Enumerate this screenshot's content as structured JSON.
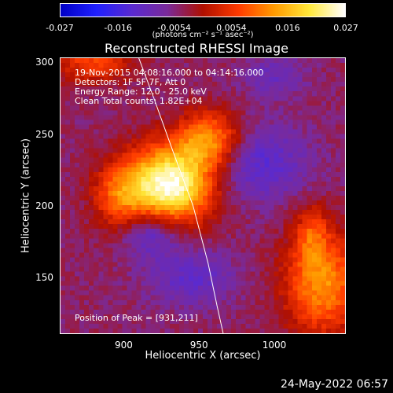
{
  "chart_data": {
    "type": "heatmap",
    "title": "Reconstructed RHESSI Image",
    "xlabel": "Heliocentric X (arcsec)",
    "ylabel": "Heliocentric Y (arcsec)",
    "xlim": [
      858,
      1047
    ],
    "ylim": [
      111,
      303
    ],
    "x_ticks": [
      900,
      950,
      1000
    ],
    "y_ticks": [
      150,
      200,
      250,
      300
    ],
    "colorbar": {
      "min": -0.027,
      "max": 0.027,
      "ticks": [
        "-0.027",
        "-0.016",
        "-0.0054",
        "0.0054",
        "0.016",
        "0.027"
      ],
      "units": "(photons cm⁻² s⁻¹ asec⁻²)",
      "colormap": [
        "#0000c8",
        "#2020ff",
        "#5a2ad0",
        "#7a2a9a",
        "#b01000",
        "#ff3a00",
        "#ff9a00",
        "#ffe83a",
        "#ffffff"
      ]
    },
    "info_lines": [
      "19-Nov-2015 04:08:16.000 to 04:14:16.000",
      "Detectors: 1F 5F 7F, Att 0",
      "Energy Range: 12.0 - 25.0 keV",
      "Clean     Total counts: 1.82E+04"
    ],
    "peak_label": "Position of Peak = [931,211]",
    "peak": {
      "x": 931,
      "y": 211,
      "value": 0.027
    },
    "sources": [
      {
        "x": 930,
        "y": 214,
        "sx": 20,
        "sy": 19,
        "amp": 1.0
      },
      {
        "x": 957,
        "y": 246,
        "sx": 15,
        "sy": 14,
        "amp": 0.55
      },
      {
        "x": 897,
        "y": 206,
        "sx": 12,
        "sy": 17,
        "amp": 0.35
      },
      {
        "x": 1032,
        "y": 145,
        "sx": 18,
        "sy": 24,
        "amp": 0.55
      },
      {
        "x": 1025,
        "y": 180,
        "sx": 8,
        "sy": 14,
        "amp": 0.3
      },
      {
        "x": 880,
        "y": 300,
        "sx": 18,
        "sy": 10,
        "amp": 0.35
      }
    ],
    "limb": [
      [
        910,
        303
      ],
      [
        920,
        275
      ],
      [
        932,
        240
      ],
      [
        946,
        200
      ],
      [
        956,
        160
      ],
      [
        962,
        130
      ],
      [
        966,
        111
      ]
    ]
  },
  "timestamp": "24-May-2022 06:57"
}
